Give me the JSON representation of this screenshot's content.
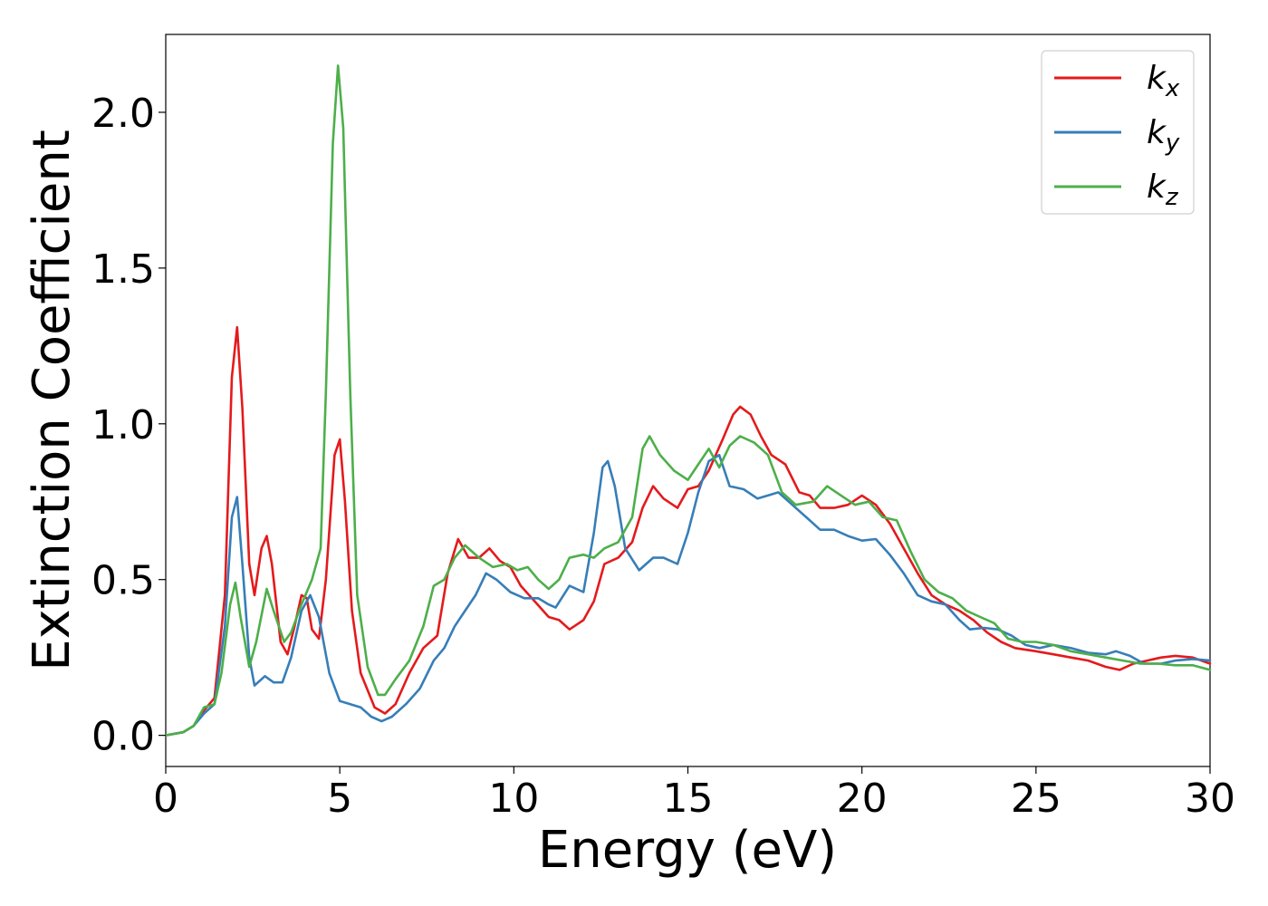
{
  "chart_data": {
    "type": "line",
    "xlabel": "Energy (eV)",
    "ylabel": "Extinction Coefficient",
    "xlim": [
      0,
      30
    ],
    "ylim": [
      -0.1,
      2.25
    ],
    "xticks": [
      0,
      5,
      10,
      15,
      20,
      25,
      30
    ],
    "yticks": [
      0.0,
      0.5,
      1.0,
      1.5,
      2.0
    ],
    "xtick_labels": [
      "0",
      "5",
      "10",
      "15",
      "20",
      "25",
      "30"
    ],
    "ytick_labels": [
      "0.0",
      "0.5",
      "1.0",
      "1.5",
      "2.0"
    ],
    "grid": false,
    "legend_position": "top-right",
    "series": [
      {
        "name": "k",
        "subscript": "x",
        "color": "#e41a1c",
        "points": [
          [
            0,
            0
          ],
          [
            0.5,
            0.01
          ],
          [
            0.8,
            0.03
          ],
          [
            1.1,
            0.08
          ],
          [
            1.4,
            0.12
          ],
          [
            1.7,
            0.45
          ],
          [
            1.9,
            1.15
          ],
          [
            2.05,
            1.31
          ],
          [
            2.2,
            1.05
          ],
          [
            2.4,
            0.55
          ],
          [
            2.55,
            0.45
          ],
          [
            2.75,
            0.6
          ],
          [
            2.9,
            0.64
          ],
          [
            3.05,
            0.55
          ],
          [
            3.3,
            0.3
          ],
          [
            3.5,
            0.26
          ],
          [
            3.7,
            0.35
          ],
          [
            3.9,
            0.45
          ],
          [
            4.05,
            0.44
          ],
          [
            4.2,
            0.34
          ],
          [
            4.4,
            0.31
          ],
          [
            4.6,
            0.5
          ],
          [
            4.85,
            0.9
          ],
          [
            5.0,
            0.95
          ],
          [
            5.15,
            0.75
          ],
          [
            5.35,
            0.4
          ],
          [
            5.6,
            0.2
          ],
          [
            6.0,
            0.09
          ],
          [
            6.3,
            0.07
          ],
          [
            6.6,
            0.1
          ],
          [
            7.0,
            0.2
          ],
          [
            7.4,
            0.28
          ],
          [
            7.8,
            0.32
          ],
          [
            8.1,
            0.52
          ],
          [
            8.4,
            0.63
          ],
          [
            8.7,
            0.57
          ],
          [
            9.0,
            0.57
          ],
          [
            9.3,
            0.6
          ],
          [
            9.6,
            0.56
          ],
          [
            9.9,
            0.54
          ],
          [
            10.2,
            0.48
          ],
          [
            10.6,
            0.43
          ],
          [
            11.0,
            0.38
          ],
          [
            11.3,
            0.37
          ],
          [
            11.6,
            0.34
          ],
          [
            12.0,
            0.37
          ],
          [
            12.3,
            0.43
          ],
          [
            12.6,
            0.55
          ],
          [
            13.0,
            0.57
          ],
          [
            13.4,
            0.62
          ],
          [
            13.7,
            0.73
          ],
          [
            14.0,
            0.8
          ],
          [
            14.3,
            0.76
          ],
          [
            14.7,
            0.73
          ],
          [
            15.0,
            0.79
          ],
          [
            15.3,
            0.8
          ],
          [
            15.6,
            0.85
          ],
          [
            16.0,
            0.95
          ],
          [
            16.3,
            1.03
          ],
          [
            16.5,
            1.055
          ],
          [
            16.8,
            1.03
          ],
          [
            17.1,
            0.96
          ],
          [
            17.4,
            0.9
          ],
          [
            17.8,
            0.87
          ],
          [
            18.2,
            0.78
          ],
          [
            18.5,
            0.77
          ],
          [
            18.8,
            0.73
          ],
          [
            19.2,
            0.73
          ],
          [
            19.6,
            0.74
          ],
          [
            20.0,
            0.77
          ],
          [
            20.4,
            0.74
          ],
          [
            20.8,
            0.68
          ],
          [
            21.2,
            0.6
          ],
          [
            21.6,
            0.52
          ],
          [
            22.0,
            0.45
          ],
          [
            22.4,
            0.42
          ],
          [
            22.8,
            0.4
          ],
          [
            23.2,
            0.37
          ],
          [
            23.6,
            0.33
          ],
          [
            24.0,
            0.3
          ],
          [
            24.4,
            0.28
          ],
          [
            25.0,
            0.27
          ],
          [
            25.5,
            0.26
          ],
          [
            26.0,
            0.25
          ],
          [
            26.5,
            0.24
          ],
          [
            27.0,
            0.22
          ],
          [
            27.4,
            0.21
          ],
          [
            27.8,
            0.23
          ],
          [
            28.2,
            0.24
          ],
          [
            28.6,
            0.25
          ],
          [
            29.0,
            0.255
          ],
          [
            29.5,
            0.25
          ],
          [
            30.0,
            0.23
          ]
        ]
      },
      {
        "name": "k",
        "subscript": "y",
        "color": "#377eb8",
        "points": [
          [
            0,
            0
          ],
          [
            0.5,
            0.01
          ],
          [
            0.8,
            0.03
          ],
          [
            1.1,
            0.07
          ],
          [
            1.4,
            0.1
          ],
          [
            1.7,
            0.35
          ],
          [
            1.9,
            0.7
          ],
          [
            2.05,
            0.765
          ],
          [
            2.2,
            0.55
          ],
          [
            2.4,
            0.25
          ],
          [
            2.55,
            0.16
          ],
          [
            2.85,
            0.19
          ],
          [
            3.1,
            0.17
          ],
          [
            3.35,
            0.17
          ],
          [
            3.6,
            0.25
          ],
          [
            3.9,
            0.4
          ],
          [
            4.15,
            0.45
          ],
          [
            4.4,
            0.38
          ],
          [
            4.7,
            0.2
          ],
          [
            5.0,
            0.11
          ],
          [
            5.3,
            0.1
          ],
          [
            5.6,
            0.09
          ],
          [
            5.9,
            0.06
          ],
          [
            6.2,
            0.045
          ],
          [
            6.5,
            0.06
          ],
          [
            6.9,
            0.1
          ],
          [
            7.3,
            0.15
          ],
          [
            7.7,
            0.24
          ],
          [
            8.0,
            0.28
          ],
          [
            8.3,
            0.35
          ],
          [
            8.6,
            0.4
          ],
          [
            8.9,
            0.45
          ],
          [
            9.2,
            0.52
          ],
          [
            9.5,
            0.5
          ],
          [
            9.9,
            0.46
          ],
          [
            10.3,
            0.44
          ],
          [
            10.7,
            0.44
          ],
          [
            11.0,
            0.42
          ],
          [
            11.2,
            0.41
          ],
          [
            11.6,
            0.48
          ],
          [
            12.0,
            0.46
          ],
          [
            12.3,
            0.65
          ],
          [
            12.55,
            0.86
          ],
          [
            12.7,
            0.88
          ],
          [
            12.9,
            0.8
          ],
          [
            13.2,
            0.6
          ],
          [
            13.6,
            0.53
          ],
          [
            14.0,
            0.57
          ],
          [
            14.3,
            0.57
          ],
          [
            14.7,
            0.55
          ],
          [
            15.0,
            0.65
          ],
          [
            15.3,
            0.78
          ],
          [
            15.6,
            0.88
          ],
          [
            15.9,
            0.9
          ],
          [
            16.2,
            0.8
          ],
          [
            16.6,
            0.79
          ],
          [
            17.0,
            0.76
          ],
          [
            17.3,
            0.77
          ],
          [
            17.6,
            0.78
          ],
          [
            18.0,
            0.74
          ],
          [
            18.4,
            0.7
          ],
          [
            18.8,
            0.66
          ],
          [
            19.2,
            0.66
          ],
          [
            19.6,
            0.64
          ],
          [
            20.0,
            0.625
          ],
          [
            20.4,
            0.63
          ],
          [
            20.8,
            0.58
          ],
          [
            21.2,
            0.52
          ],
          [
            21.6,
            0.45
          ],
          [
            22.0,
            0.43
          ],
          [
            22.4,
            0.42
          ],
          [
            22.8,
            0.37
          ],
          [
            23.1,
            0.34
          ],
          [
            23.5,
            0.345
          ],
          [
            23.9,
            0.34
          ],
          [
            24.3,
            0.32
          ],
          [
            24.7,
            0.29
          ],
          [
            25.1,
            0.28
          ],
          [
            25.5,
            0.29
          ],
          [
            26.0,
            0.28
          ],
          [
            26.5,
            0.265
          ],
          [
            27.0,
            0.26
          ],
          [
            27.3,
            0.27
          ],
          [
            27.7,
            0.255
          ],
          [
            28.1,
            0.23
          ],
          [
            28.6,
            0.23
          ],
          [
            29.0,
            0.24
          ],
          [
            29.5,
            0.245
          ],
          [
            30.0,
            0.24
          ]
        ]
      },
      {
        "name": "k",
        "subscript": "z",
        "color": "#4daf4a",
        "points": [
          [
            0,
            0
          ],
          [
            0.5,
            0.01
          ],
          [
            0.8,
            0.03
          ],
          [
            1.1,
            0.09
          ],
          [
            1.4,
            0.1
          ],
          [
            1.6,
            0.2
          ],
          [
            1.85,
            0.42
          ],
          [
            2.0,
            0.49
          ],
          [
            2.15,
            0.38
          ],
          [
            2.4,
            0.22
          ],
          [
            2.6,
            0.3
          ],
          [
            2.9,
            0.47
          ],
          [
            3.1,
            0.4
          ],
          [
            3.4,
            0.3
          ],
          [
            3.6,
            0.33
          ],
          [
            3.9,
            0.42
          ],
          [
            4.2,
            0.5
          ],
          [
            4.45,
            0.6
          ],
          [
            4.6,
            1.1
          ],
          [
            4.8,
            1.9
          ],
          [
            4.95,
            2.15
          ],
          [
            5.1,
            1.95
          ],
          [
            5.3,
            1.1
          ],
          [
            5.5,
            0.45
          ],
          [
            5.8,
            0.22
          ],
          [
            6.1,
            0.13
          ],
          [
            6.3,
            0.13
          ],
          [
            6.6,
            0.18
          ],
          [
            7.0,
            0.24
          ],
          [
            7.4,
            0.35
          ],
          [
            7.7,
            0.48
          ],
          [
            8.0,
            0.5
          ],
          [
            8.3,
            0.57
          ],
          [
            8.6,
            0.61
          ],
          [
            9.0,
            0.57
          ],
          [
            9.4,
            0.54
          ],
          [
            9.8,
            0.55
          ],
          [
            10.1,
            0.53
          ],
          [
            10.4,
            0.54
          ],
          [
            10.7,
            0.5
          ],
          [
            11.0,
            0.47
          ],
          [
            11.3,
            0.5
          ],
          [
            11.6,
            0.57
          ],
          [
            12.0,
            0.58
          ],
          [
            12.3,
            0.57
          ],
          [
            12.6,
            0.6
          ],
          [
            13.0,
            0.62
          ],
          [
            13.4,
            0.7
          ],
          [
            13.7,
            0.92
          ],
          [
            13.9,
            0.96
          ],
          [
            14.2,
            0.9
          ],
          [
            14.6,
            0.85
          ],
          [
            15.0,
            0.82
          ],
          [
            15.3,
            0.87
          ],
          [
            15.6,
            0.92
          ],
          [
            15.9,
            0.86
          ],
          [
            16.2,
            0.93
          ],
          [
            16.5,
            0.96
          ],
          [
            16.9,
            0.94
          ],
          [
            17.3,
            0.9
          ],
          [
            17.7,
            0.78
          ],
          [
            18.1,
            0.74
          ],
          [
            18.6,
            0.75
          ],
          [
            19.0,
            0.8
          ],
          [
            19.4,
            0.77
          ],
          [
            19.8,
            0.74
          ],
          [
            20.2,
            0.75
          ],
          [
            20.6,
            0.7
          ],
          [
            21.0,
            0.69
          ],
          [
            21.4,
            0.59
          ],
          [
            21.8,
            0.5
          ],
          [
            22.2,
            0.46
          ],
          [
            22.6,
            0.44
          ],
          [
            23.0,
            0.4
          ],
          [
            23.4,
            0.38
          ],
          [
            23.8,
            0.36
          ],
          [
            24.2,
            0.31
          ],
          [
            24.6,
            0.3
          ],
          [
            25.0,
            0.3
          ],
          [
            25.5,
            0.29
          ],
          [
            26.0,
            0.27
          ],
          [
            26.5,
            0.26
          ],
          [
            27.0,
            0.25
          ],
          [
            27.5,
            0.24
          ],
          [
            28.0,
            0.23
          ],
          [
            28.5,
            0.23
          ],
          [
            29.0,
            0.225
          ],
          [
            29.5,
            0.225
          ],
          [
            30.0,
            0.21
          ]
        ]
      }
    ]
  }
}
